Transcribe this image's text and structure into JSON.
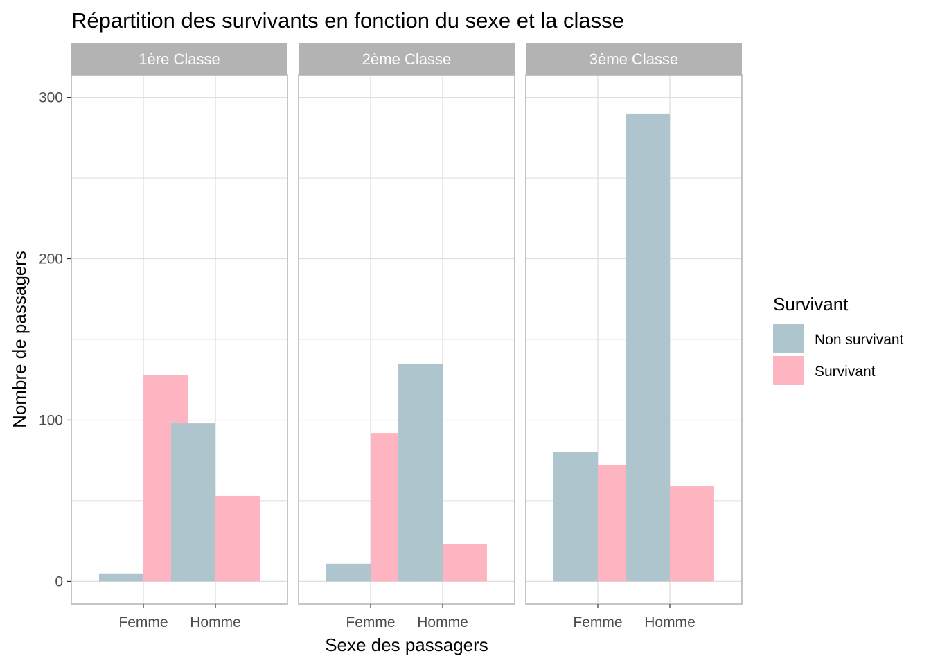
{
  "chart_data": {
    "type": "bar",
    "title": "Répartition des survivants en fonction du sexe et la classe",
    "xlabel": "Sexe des passagers",
    "ylabel": "Nombre de passagers",
    "ylim": [
      -14,
      314
    ],
    "yticks": [
      0,
      100,
      200,
      300
    ],
    "ytick_labels": [
      "0",
      "100",
      "200",
      "300"
    ],
    "grid": true,
    "categories": [
      "Femme",
      "Homme"
    ],
    "facets": [
      {
        "label": "1ère Classe",
        "series": [
          {
            "name": "Non survivant",
            "values": [
              5,
              98
            ]
          },
          {
            "name": "Survivant",
            "values": [
              128,
              53
            ]
          }
        ]
      },
      {
        "label": "2ème Classe",
        "series": [
          {
            "name": "Non survivant",
            "values": [
              11,
              135
            ]
          },
          {
            "name": "Survivant",
            "values": [
              92,
              23
            ]
          }
        ]
      },
      {
        "label": "3ème Classe",
        "series": [
          {
            "name": "Non survivant",
            "values": [
              80,
              290
            ]
          },
          {
            "name": "Survivant",
            "values": [
              72,
              59
            ]
          }
        ]
      }
    ],
    "legend": {
      "title": "Survivant",
      "position": "right",
      "entries": [
        {
          "label": "Non survivant",
          "color": "#aec5ce"
        },
        {
          "label": "Survivant",
          "color": "#ffb5c1"
        }
      ]
    }
  },
  "colors": {
    "non_survivant": "#aec5ce",
    "survivant": "#ffb5c1",
    "strip_background": "#b3b3b3",
    "grid": "#dedede",
    "panel_border": "#b3b3b3"
  }
}
